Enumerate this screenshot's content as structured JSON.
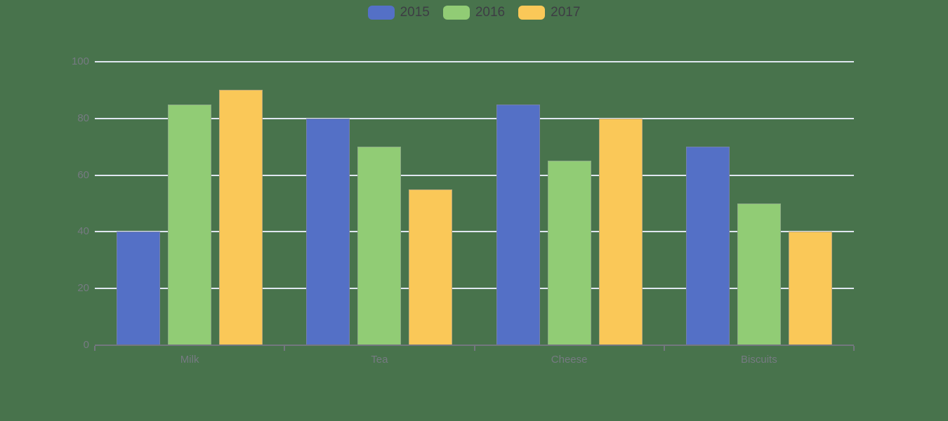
{
  "colors": {
    "background": "#48734C",
    "grid_line": "#DFE6F0",
    "axis_line": "#73777E",
    "axis_label": "#767A82",
    "legend_text": "#3D3D44",
    "bar_border": "rgba(140,144,150,0.55)"
  },
  "legend": {
    "position": "top-center",
    "items": [
      {
        "label": "2015",
        "color": "#5470C6"
      },
      {
        "label": "2016",
        "color": "#91CC75"
      },
      {
        "label": "2017",
        "color": "#FAC858"
      }
    ]
  },
  "chart_data": {
    "type": "bar",
    "title": "",
    "xlabel": "",
    "ylabel": "",
    "categories": [
      "Milk",
      "Tea",
      "Cheese",
      "Biscuits"
    ],
    "series": [
      {
        "name": "2015",
        "color": "#5470C6",
        "values": [
          40,
          80,
          85,
          70
        ]
      },
      {
        "name": "2016",
        "color": "#91CC75",
        "values": [
          85,
          70,
          65,
          50
        ]
      },
      {
        "name": "2017",
        "color": "#FAC858",
        "values": [
          90,
          55,
          80,
          40
        ]
      }
    ],
    "yticks": [
      0,
      20,
      40,
      60,
      80,
      100
    ],
    "ylim": [
      0,
      100
    ],
    "grid": true,
    "legend_position": "top"
  }
}
